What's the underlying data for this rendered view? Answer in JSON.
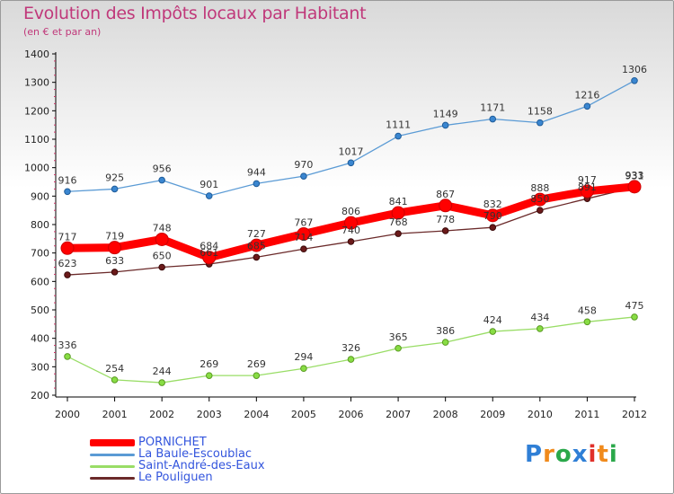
{
  "title": "Evolution des Impôts locaux par Habitant",
  "subtitle": "(en € et par an)",
  "logo": "Proxiti",
  "chart_data": {
    "type": "line",
    "title": "Evolution des Impôts locaux par Habitant",
    "subtitle": "(en € et par an)",
    "x": [
      "2000",
      "2001",
      "2002",
      "2003",
      "2004",
      "2005",
      "2006",
      "2007",
      "2008",
      "2009",
      "2010",
      "2011",
      "2012"
    ],
    "ylim": [
      200,
      1400
    ],
    "yticks": [
      "200",
      "300",
      "400",
      "500",
      "600",
      "700",
      "800",
      "900",
      "1000",
      "1100",
      "1200",
      "1300",
      "1400"
    ],
    "grid": false,
    "legend": "bottom-left",
    "series": [
      {
        "name": "PORNICHET",
        "color": "#ff0000",
        "values": [
          717,
          719,
          748,
          684,
          727,
          767,
          806,
          841,
          867,
          832,
          888,
          917,
          933
        ]
      },
      {
        "name": "La Baule-Escoublac",
        "color": "#5b9bd5",
        "values": [
          916,
          925,
          956,
          901,
          944,
          970,
          1017,
          1111,
          1149,
          1171,
          1158,
          1216,
          1306
        ]
      },
      {
        "name": "Saint-André-des-Eaux",
        "color": "#99dd66",
        "values": [
          336,
          254,
          244,
          269,
          269,
          294,
          326,
          365,
          386,
          424,
          434,
          458,
          475
        ]
      },
      {
        "name": "Le Pouliguen",
        "color": "#6b2a2a",
        "values": [
          623,
          633,
          650,
          661,
          685,
          714,
          740,
          768,
          778,
          790,
          850,
          891,
          931
        ]
      }
    ]
  }
}
